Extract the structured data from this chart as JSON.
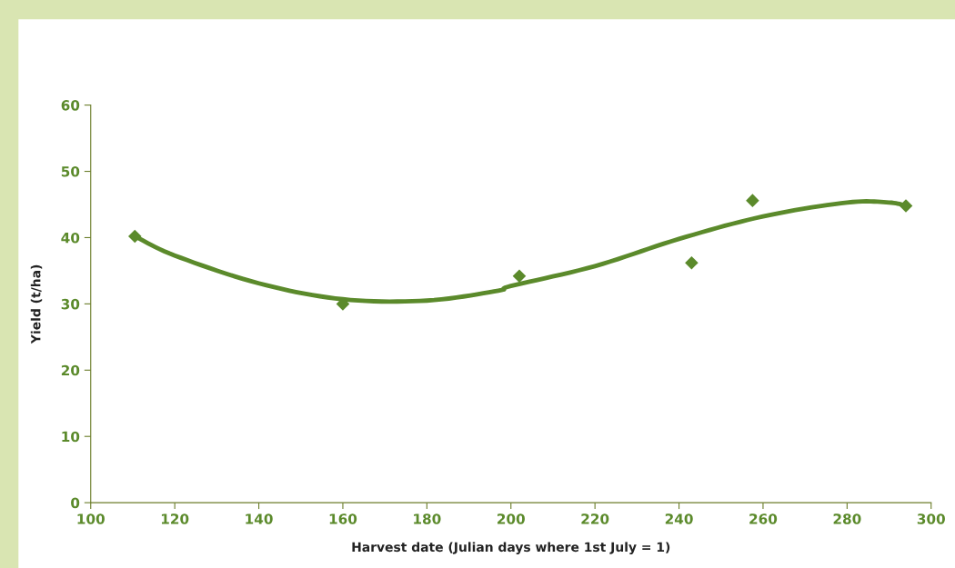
{
  "chart_data": {
    "type": "scatter",
    "xlabel": "Harvest date (Julian days where 1st July = 1)",
    "ylabel": "Yield (t/ha)",
    "xlim": [
      100,
      300
    ],
    "xticks": [
      100,
      120,
      140,
      160,
      180,
      200,
      220,
      240,
      260,
      280,
      300
    ],
    "ylim": [
      0,
      60
    ],
    "yticks": [
      0,
      10,
      20,
      30,
      40,
      50,
      60
    ],
    "grid": false,
    "legend": false,
    "series": [
      {
        "color": "#5b8a2b",
        "marker": "diamond",
        "x": [
          110.5,
          160,
          202,
          243,
          257.5,
          294
        ],
        "values": [
          40.2,
          30.0,
          34.2,
          36.2,
          45.6,
          44.8
        ]
      },
      {
        "type": "line",
        "color": "#5b8a2b",
        "marker": "none",
        "line_style": "solid",
        "x": [
          110.5,
          120,
          140,
          160,
          180,
          197,
          200,
          220,
          240,
          260,
          280,
          290,
          294
        ],
        "values": [
          40.2,
          37.3,
          33.1,
          30.7,
          30.5,
          32.0,
          32.7,
          35.7,
          39.8,
          43.2,
          45.3,
          45.3,
          44.8
        ]
      }
    ]
  }
}
